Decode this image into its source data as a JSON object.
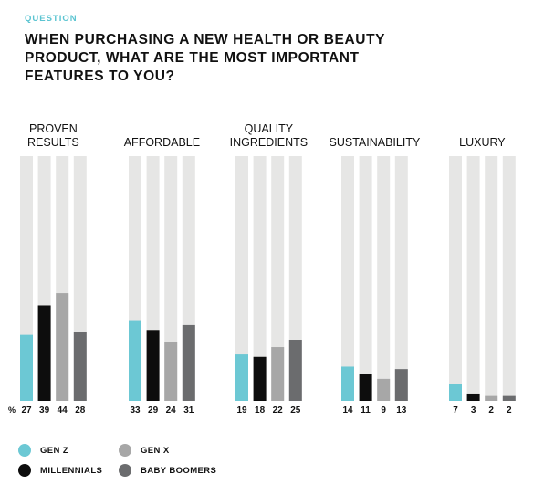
{
  "header": {
    "kicker": "QUESTION",
    "title": "WHEN PURCHASING A NEW HEALTH OR BEAUTY PRODUCT, WHAT ARE THE MOST IMPORTANT FEATURES TO YOU?"
  },
  "colors": {
    "accent": "#5bc4d1",
    "track": "#e6e6e5",
    "series": [
      "#6cc8d4",
      "#0d0d0d",
      "#a7a7a7",
      "#6b6c6e"
    ]
  },
  "chart_data": {
    "type": "bar",
    "unit_label": "%",
    "ylim": [
      0,
      100
    ],
    "grid": false,
    "legend_position": "bottom-left",
    "groups": [
      {
        "label_lines": [
          "PROVEN",
          "RESULTS"
        ],
        "values": [
          27,
          39,
          44,
          28
        ]
      },
      {
        "label_lines": [
          "AFFORDABLE"
        ],
        "values": [
          33,
          29,
          24,
          31
        ]
      },
      {
        "label_lines": [
          "QUALITY",
          "INGREDIENTS"
        ],
        "values": [
          19,
          18,
          22,
          25
        ]
      },
      {
        "label_lines": [
          "SUSTAINABILITY"
        ],
        "values": [
          14,
          11,
          9,
          13
        ]
      },
      {
        "label_lines": [
          "LUXURY"
        ],
        "values": [
          7,
          3,
          2,
          2
        ]
      }
    ],
    "series": [
      {
        "name": "GEN Z"
      },
      {
        "name": "MILLENNIALS"
      },
      {
        "name": "GEN X"
      },
      {
        "name": "BABY BOOMERS"
      }
    ]
  }
}
